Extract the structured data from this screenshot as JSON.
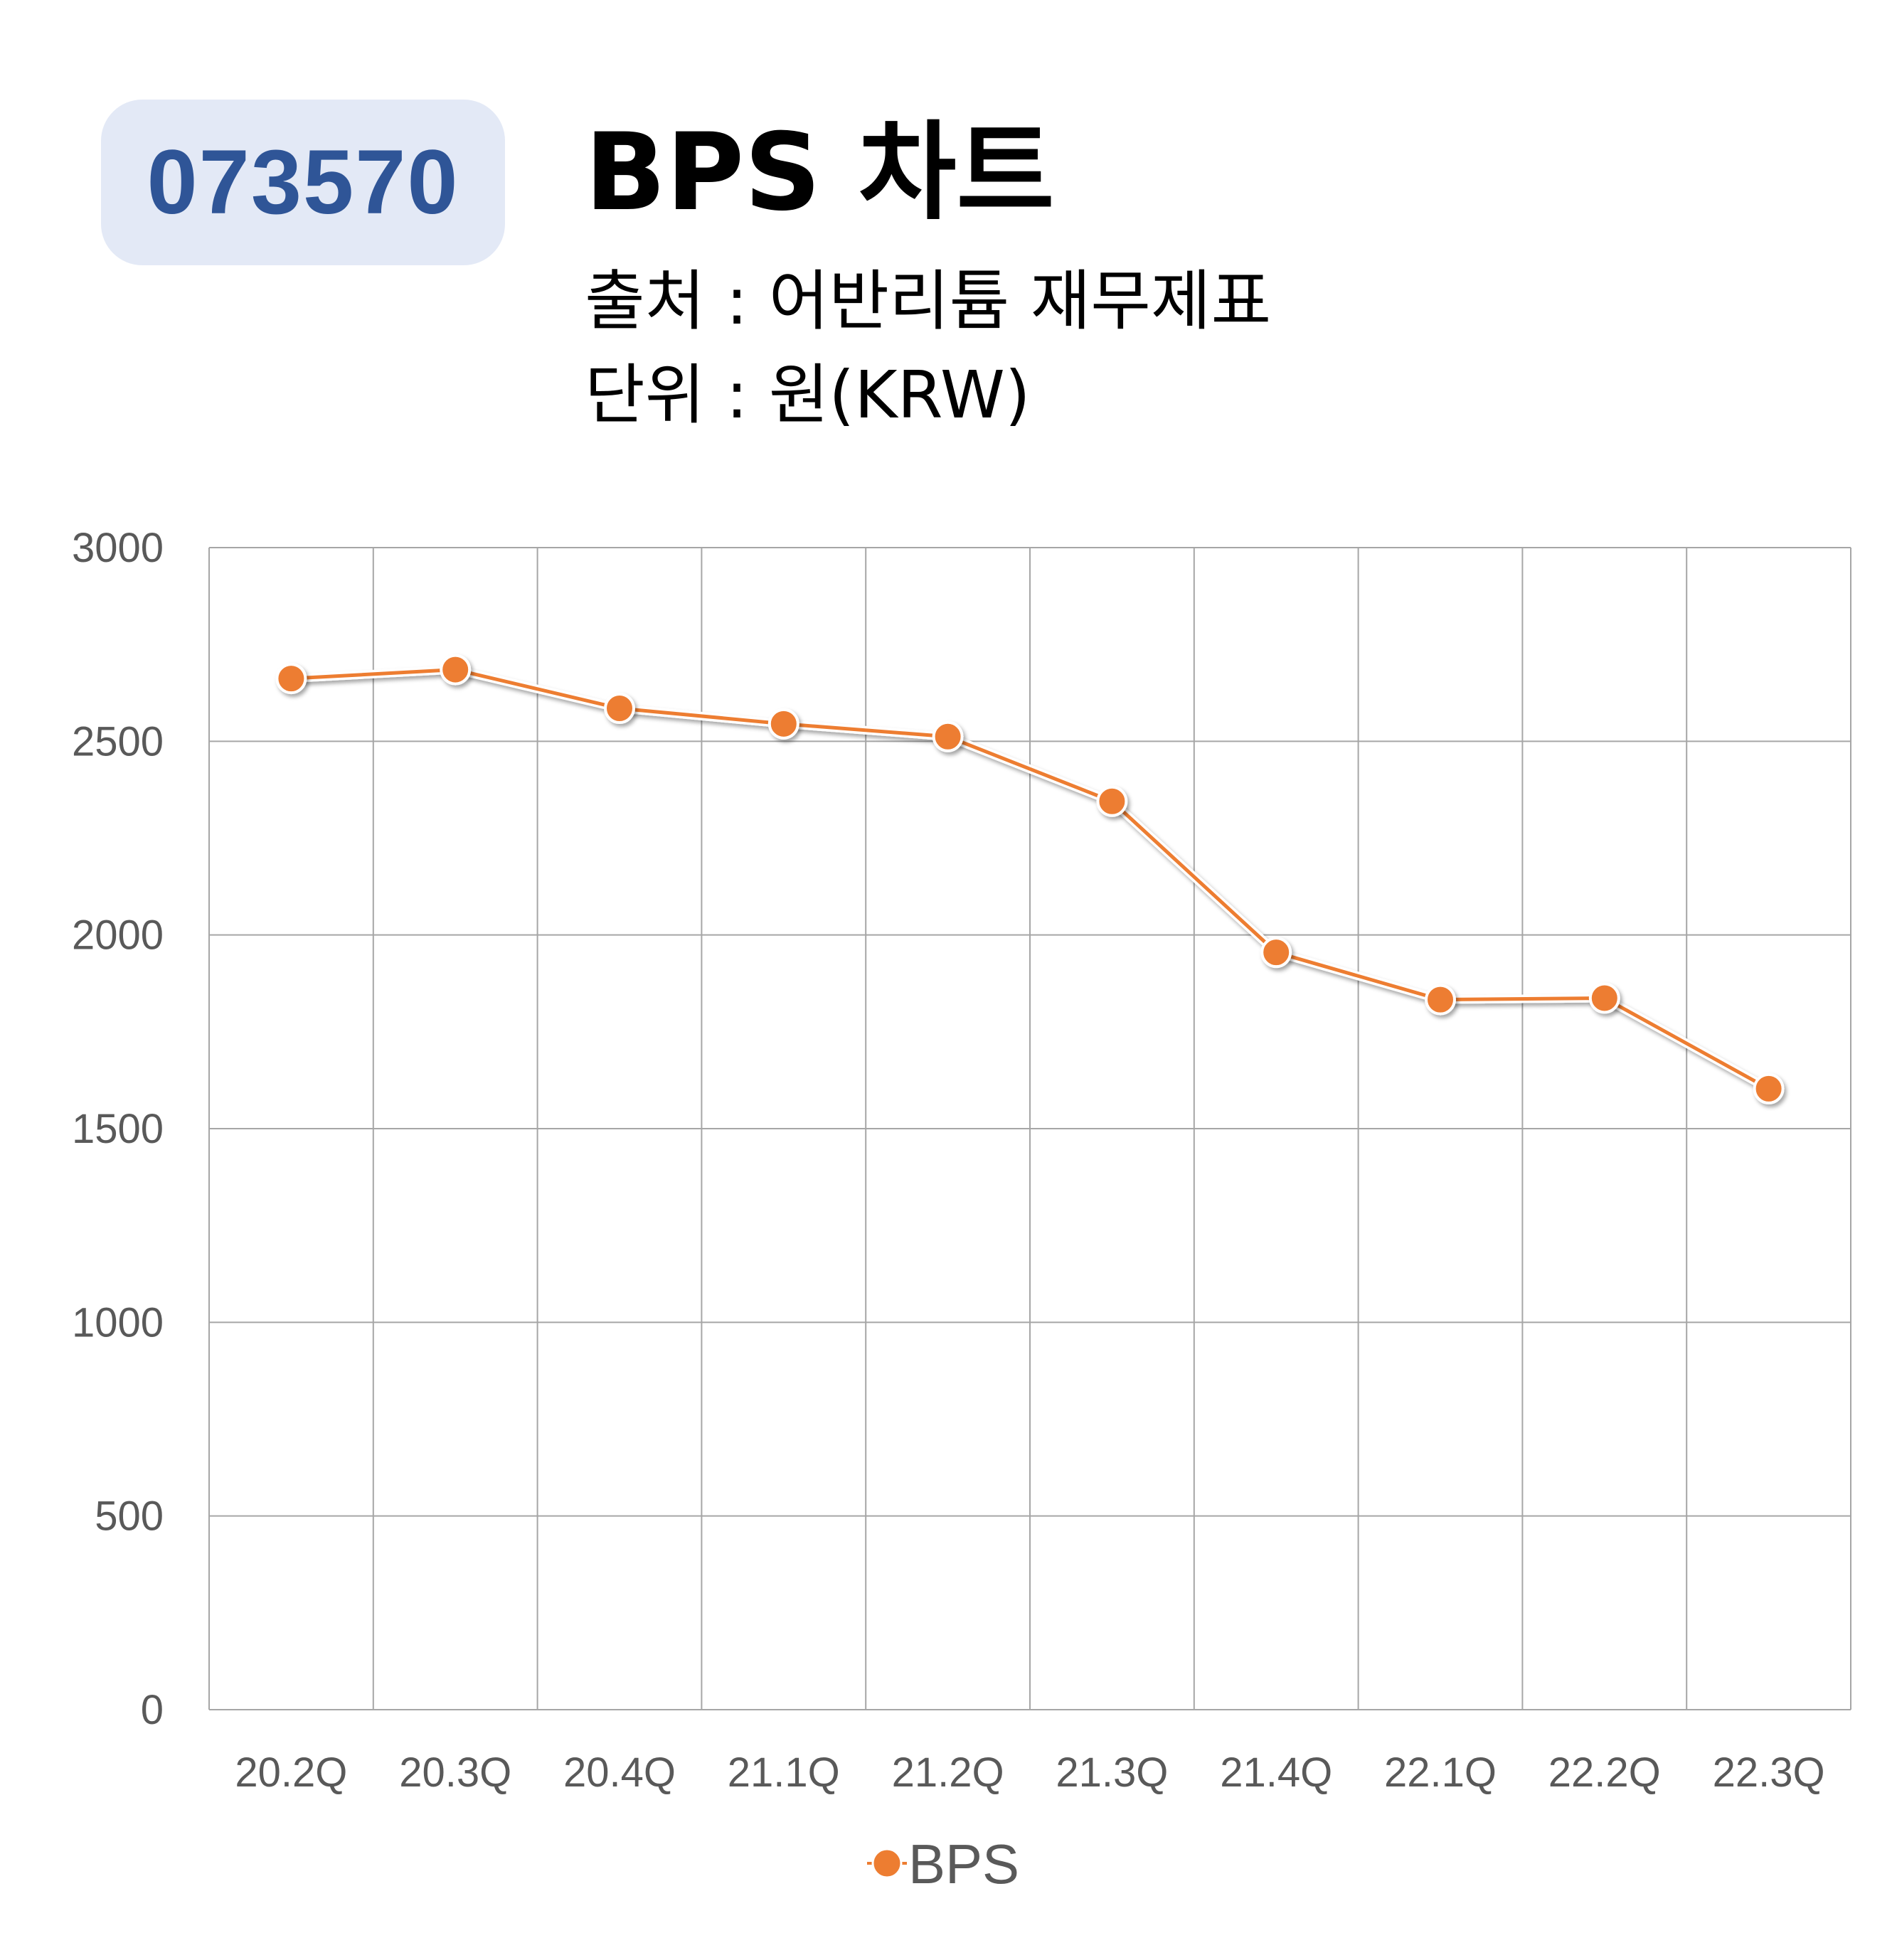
{
  "header": {
    "code": "073570",
    "title": "BPS 차트",
    "source_line": "출처 : 어반리튬 재무제표",
    "unit_line": "단위 : 원(KRW)"
  },
  "colors": {
    "badge_bg": "#e3e9f6",
    "badge_text": "#2f5597",
    "series": "#ed7d31",
    "grid": "#a6a6a6",
    "tick_text": "#595959"
  },
  "chart_data": {
    "type": "line",
    "categories": [
      "20.2Q",
      "20.3Q",
      "20.4Q",
      "21.1Q",
      "21.2Q",
      "21.3Q",
      "21.4Q",
      "22.1Q",
      "22.2Q",
      "22.3Q"
    ],
    "series": [
      {
        "name": "BPS",
        "values": [
          2662,
          2685,
          2585,
          2545,
          2512,
          2345,
          1955,
          1833,
          1837,
          1603
        ]
      }
    ],
    "y_ticks": [
      0,
      500,
      1000,
      1500,
      2000,
      2500,
      3000
    ],
    "ylim": [
      0,
      3000
    ],
    "grid": true,
    "legend_position": "bottom"
  }
}
